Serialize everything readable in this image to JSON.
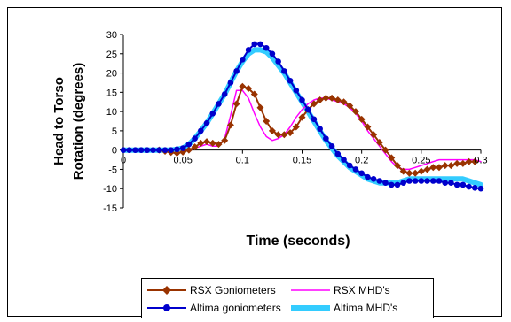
{
  "chart_data": {
    "type": "line",
    "xlabel": "Time (seconds)",
    "ylabel": "Head to Torso Rotation (degrees)",
    "xlim": [
      0,
      0.3
    ],
    "ylim": [
      -15,
      30
    ],
    "xticks": [
      "0",
      "0.05",
      "0.1",
      "0.15",
      "0.2",
      "0.25",
      "0.3"
    ],
    "yticks": [
      "-15",
      "-10",
      "-5",
      "0",
      "5",
      "10",
      "15",
      "20",
      "25",
      "30"
    ],
    "grid": false,
    "legend_position": "bottom",
    "series": [
      {
        "name": "RSX Goniometers",
        "color": "#993300",
        "marker": "diamond",
        "x": [
          0.03,
          0.035,
          0.04,
          0.045,
          0.05,
          0.055,
          0.06,
          0.065,
          0.07,
          0.075,
          0.08,
          0.085,
          0.09,
          0.095,
          0.1,
          0.105,
          0.11,
          0.115,
          0.12,
          0.125,
          0.13,
          0.135,
          0.14,
          0.145,
          0.15,
          0.155,
          0.16,
          0.165,
          0.17,
          0.175,
          0.18,
          0.185,
          0.19,
          0.195,
          0.2,
          0.205,
          0.21,
          0.215,
          0.22,
          0.225,
          0.23,
          0.235,
          0.24,
          0.245,
          0.25,
          0.255,
          0.26,
          0.265,
          0.27,
          0.275,
          0.28,
          0.285,
          0.29,
          0.295
        ],
        "y": [
          0,
          -0.3,
          -0.6,
          -0.8,
          -0.5,
          0,
          0.8,
          1.8,
          2.2,
          1.8,
          1.5,
          2.5,
          6.5,
          12,
          16.5,
          16,
          14.5,
          11,
          7.5,
          5,
          4,
          4,
          4.5,
          6,
          8.5,
          10.5,
          12,
          13,
          13.5,
          13.5,
          13,
          12.5,
          11.5,
          10,
          8,
          6,
          4,
          2,
          0,
          -2,
          -4,
          -5.5,
          -6,
          -6,
          -5.5,
          -5,
          -4.5,
          -4.5,
          -4,
          -4,
          -3.5,
          -3.5,
          -3,
          -3
        ]
      },
      {
        "name": "RSX MHD's",
        "color": "#ff00ff",
        "marker": "none",
        "x": [
          0.03,
          0.035,
          0.04,
          0.045,
          0.05,
          0.055,
          0.06,
          0.065,
          0.07,
          0.075,
          0.08,
          0.085,
          0.09,
          0.095,
          0.1,
          0.105,
          0.11,
          0.115,
          0.12,
          0.125,
          0.13,
          0.135,
          0.14,
          0.145,
          0.15,
          0.155,
          0.16,
          0.165,
          0.17,
          0.175,
          0.18,
          0.185,
          0.19,
          0.195,
          0.2,
          0.205,
          0.21,
          0.215,
          0.22,
          0.225,
          0.23,
          0.235,
          0.24,
          0.245,
          0.25,
          0.255,
          0.26,
          0.265,
          0.27,
          0.275,
          0.28,
          0.285,
          0.29,
          0.295,
          0.3
        ],
        "y": [
          0,
          -0.3,
          -0.6,
          -0.8,
          -0.5,
          0,
          0.5,
          1,
          1.5,
          1,
          1,
          3,
          9,
          15.5,
          15.5,
          13.5,
          9.5,
          6,
          3.5,
          2.5,
          3,
          4,
          6,
          8.5,
          10.5,
          12,
          13,
          13.5,
          13.5,
          13,
          12.5,
          12,
          11,
          9.5,
          7.5,
          5,
          3,
          1,
          -1,
          -3,
          -4.5,
          -5,
          -5,
          -4.5,
          -4,
          -3.5,
          -3,
          -2.5,
          -2.5,
          -2.5,
          -2.5,
          -2.5,
          -2.5,
          -2.5,
          -3
        ]
      },
      {
        "name": "Altima goniometers",
        "color": "#0000cc",
        "marker": "circle",
        "x": [
          0,
          0.005,
          0.01,
          0.015,
          0.02,
          0.025,
          0.03,
          0.035,
          0.04,
          0.045,
          0.05,
          0.055,
          0.06,
          0.065,
          0.07,
          0.075,
          0.08,
          0.085,
          0.09,
          0.095,
          0.1,
          0.105,
          0.11,
          0.115,
          0.12,
          0.125,
          0.13,
          0.135,
          0.14,
          0.145,
          0.15,
          0.155,
          0.16,
          0.165,
          0.17,
          0.175,
          0.18,
          0.185,
          0.19,
          0.195,
          0.2,
          0.205,
          0.21,
          0.215,
          0.22,
          0.225,
          0.23,
          0.235,
          0.24,
          0.245,
          0.25,
          0.255,
          0.26,
          0.265,
          0.27,
          0.275,
          0.28,
          0.285,
          0.29,
          0.295,
          0.3
        ],
        "y": [
          0,
          0,
          0,
          0,
          0,
          0,
          0,
          0,
          0,
          0.2,
          0.5,
          1.5,
          3,
          5,
          7,
          9.5,
          12,
          14.5,
          17.5,
          20.5,
          23.5,
          26,
          27.5,
          27.5,
          26.5,
          25,
          23,
          20.5,
          18,
          15.5,
          13,
          10.5,
          8,
          5.5,
          3,
          1,
          -1,
          -2.5,
          -4,
          -5,
          -6,
          -7,
          -7.5,
          -8,
          -8.5,
          -9,
          -9,
          -8.5,
          -8,
          -8,
          -8,
          -8,
          -8,
          -8,
          -8.5,
          -8.5,
          -9,
          -9,
          -9.5,
          -9.8,
          -10
        ]
      },
      {
        "name": "Altima MHD's",
        "color": "#33ccff",
        "marker": "none",
        "x": [
          0,
          0.005,
          0.01,
          0.015,
          0.02,
          0.025,
          0.03,
          0.035,
          0.04,
          0.045,
          0.05,
          0.055,
          0.06,
          0.065,
          0.07,
          0.075,
          0.08,
          0.085,
          0.09,
          0.095,
          0.1,
          0.105,
          0.11,
          0.115,
          0.12,
          0.125,
          0.13,
          0.135,
          0.14,
          0.145,
          0.15,
          0.155,
          0.16,
          0.165,
          0.17,
          0.175,
          0.18,
          0.185,
          0.19,
          0.195,
          0.2,
          0.205,
          0.21,
          0.215,
          0.22,
          0.225,
          0.23,
          0.235,
          0.24,
          0.245,
          0.25,
          0.255,
          0.26,
          0.265,
          0.27,
          0.275,
          0.28,
          0.285,
          0.29,
          0.295,
          0.3
        ],
        "y": [
          0,
          0,
          0,
          0,
          0,
          0,
          0,
          0,
          0,
          0.2,
          0.5,
          1.5,
          3,
          5,
          7,
          9.5,
          12,
          14.5,
          17.5,
          20.5,
          23,
          25,
          26,
          26,
          25.5,
          24,
          22,
          20,
          17.5,
          15,
          12.5,
          10,
          7.5,
          5,
          2.5,
          0.5,
          -1.5,
          -3,
          -4.5,
          -5.5,
          -6.5,
          -7.5,
          -8,
          -8.5,
          -8.5,
          -8.5,
          -8.5,
          -8,
          -7.5,
          -7.5,
          -7.5,
          -7.5,
          -7.5,
          -7.5,
          -7.5,
          -7.5,
          -7.5,
          -7.5,
          -8,
          -8.5,
          -9
        ]
      }
    ]
  }
}
